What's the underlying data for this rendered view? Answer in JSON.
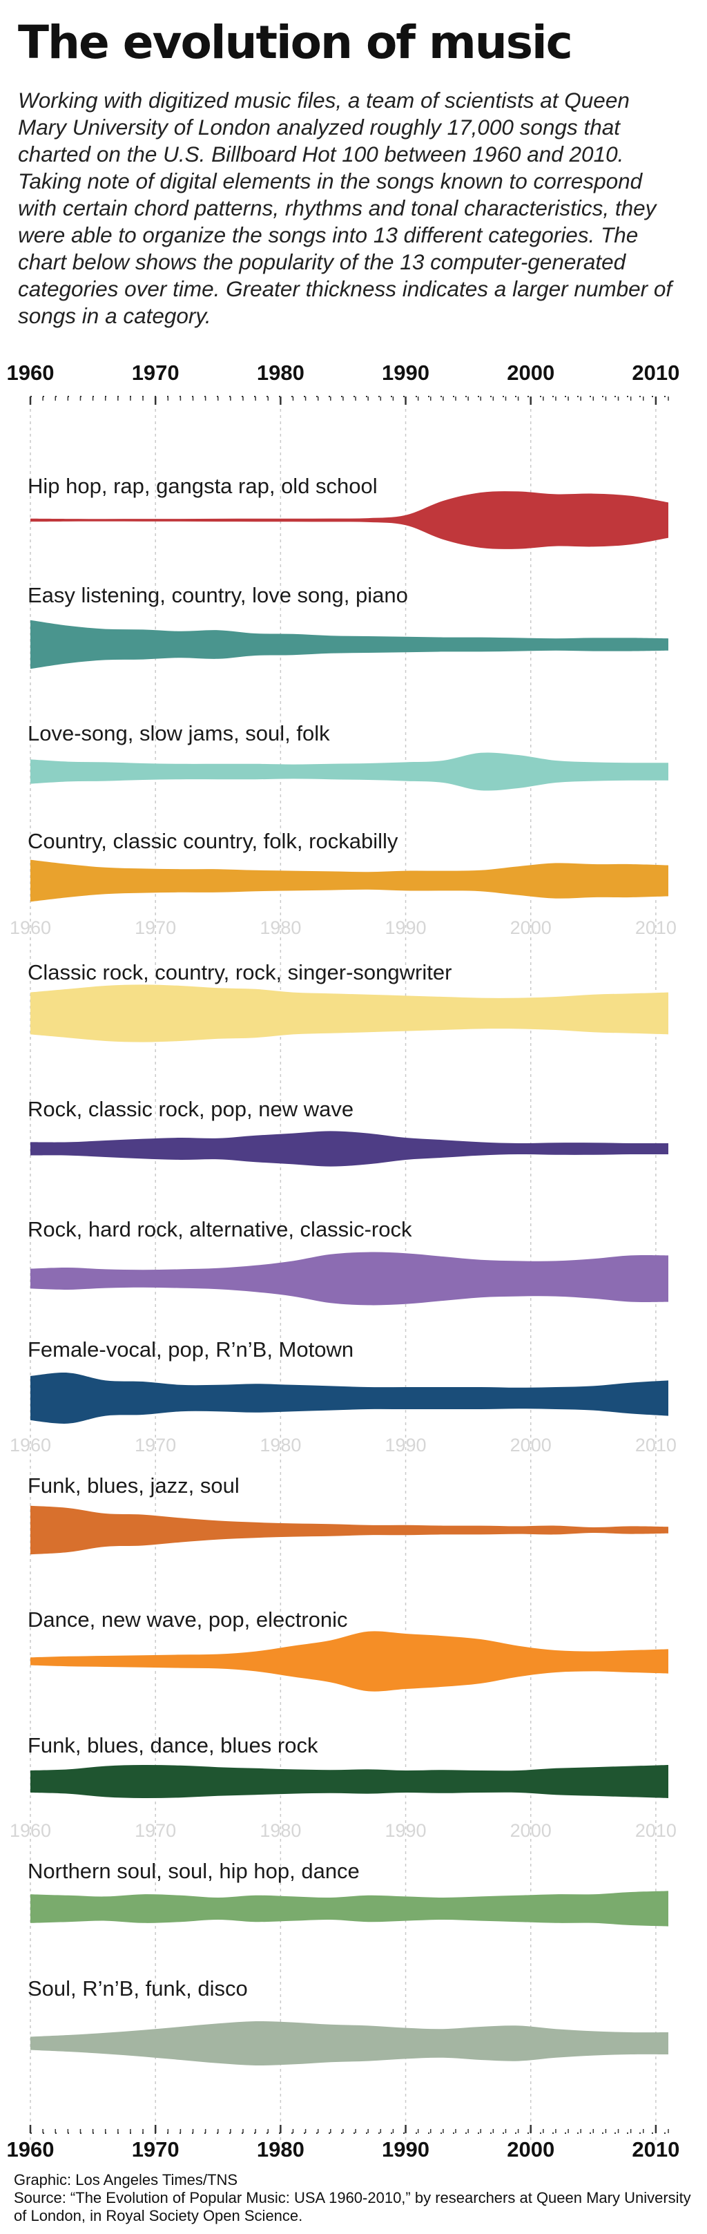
{
  "title": "The evolution of music",
  "intro": "Working with digitized music files, a team of scientists at Queen Mary University of London analyzed roughly 17,000 songs that charted on the U.S. Billboard Hot 100 between 1960 and 2010. Taking note of digital elements in the songs known to correspond with certain chord patterns, rhythms and tonal characteristics, they were able to organize the songs into 13 different categories. The chart below shows the popularity of the 13 computer-generated categories over time. Greater thickness indicates a larger number of songs in a category.",
  "credits": {
    "graphic": "Graphic: Los Angeles Times/TNS",
    "source": "Source: “The Evolution of Popular Music: USA 1960-2010,” by researchers at Queen Mary University of London, in Royal Society Open Science."
  },
  "chart_data": {
    "type": "area",
    "subtype": "streamgraph (thickness = relative number of songs)",
    "x_ticks": [
      "1960",
      "1970",
      "1980",
      "1990",
      "2000",
      "2010"
    ],
    "xlim": [
      1960,
      2011
    ],
    "grid": true,
    "x": [
      1960,
      1963,
      1966,
      1969,
      1972,
      1975,
      1978,
      1981,
      1984,
      1987,
      1990,
      1993,
      1996,
      1999,
      2002,
      2005,
      2008,
      2011
    ],
    "series": [
      {
        "name": "Hip hop, rap, gangsta rap, old school",
        "color": "#c0373b",
        "values": [
          0.14,
          0.12,
          0.11,
          0.12,
          0.12,
          0.13,
          0.14,
          0.14,
          0.15,
          0.18,
          0.45,
          1.75,
          2.5,
          2.6,
          2.35,
          2.4,
          2.2,
          1.6
        ]
      },
      {
        "name": "Easy listening, country, love song, piano",
        "color": "#4a958e",
        "values": [
          2.2,
          1.7,
          1.4,
          1.35,
          1.2,
          1.3,
          1.0,
          0.95,
          0.8,
          0.75,
          0.7,
          0.65,
          0.65,
          0.6,
          0.55,
          0.6,
          0.6,
          0.55
        ]
      },
      {
        "name": "Love-song, slow jams, soul, folk",
        "color": "#8dd0c4",
        "values": [
          1.1,
          0.9,
          0.85,
          0.75,
          0.7,
          0.7,
          0.7,
          0.65,
          0.7,
          0.75,
          0.85,
          1.0,
          1.7,
          1.5,
          1.0,
          0.85,
          0.8,
          0.8
        ]
      },
      {
        "name": "Country, classic country, folk, rockabilly",
        "color": "#e9a22d",
        "values": [
          1.9,
          1.5,
          1.2,
          1.1,
          1.05,
          1.05,
          0.95,
          0.9,
          0.85,
          0.8,
          0.9,
          0.9,
          0.95,
          1.3,
          1.6,
          1.5,
          1.5,
          1.4
        ]
      },
      {
        "name": "Classic rock, country, rock, singer-songwriter",
        "color": "#f6df88",
        "values": [
          1.9,
          2.2,
          2.5,
          2.6,
          2.5,
          2.3,
          2.2,
          1.9,
          1.8,
          1.7,
          1.6,
          1.5,
          1.4,
          1.4,
          1.5,
          1.7,
          1.8,
          1.9
        ]
      },
      {
        "name": "Rock, classic rock, pop, new wave",
        "color": "#4e3d85",
        "values": [
          0.6,
          0.6,
          0.75,
          0.9,
          1.0,
          0.95,
          1.2,
          1.4,
          1.6,
          1.4,
          1.0,
          0.8,
          0.6,
          0.5,
          0.55,
          0.55,
          0.5,
          0.5
        ]
      },
      {
        "name": "Rock, hard rock, alternative, classic-rock",
        "color": "#8c6cb2",
        "values": [
          0.9,
          1.0,
          0.85,
          0.8,
          0.85,
          0.95,
          1.2,
          1.6,
          2.2,
          2.4,
          2.3,
          2.0,
          1.7,
          1.6,
          1.6,
          1.8,
          2.1,
          2.1
        ]
      },
      {
        "name": "Female-vocal, pop, R’n’B, Motown",
        "color": "#1a4d79",
        "values": [
          2.0,
          2.3,
          1.6,
          1.5,
          1.2,
          1.2,
          1.3,
          1.2,
          1.1,
          1.0,
          1.0,
          1.0,
          1.0,
          0.95,
          1.0,
          1.1,
          1.4,
          1.6
        ]
      },
      {
        "name": "Funk, blues, jazz, soul",
        "color": "#d8702d",
        "values": [
          2.2,
          2.0,
          1.5,
          1.4,
          1.1,
          0.85,
          0.7,
          0.6,
          0.55,
          0.45,
          0.45,
          0.4,
          0.4,
          0.35,
          0.4,
          0.25,
          0.35,
          0.3
        ]
      },
      {
        "name": "Dance, new wave, pop, electronic",
        "color": "#f58e26",
        "values": [
          0.35,
          0.45,
          0.5,
          0.55,
          0.6,
          0.65,
          0.9,
          1.4,
          1.9,
          2.7,
          2.5,
          2.3,
          2.0,
          1.4,
          1.0,
          0.9,
          1.0,
          1.1
        ]
      },
      {
        "name": "Funk, blues, dance, blues rock",
        "color": "#1f5530",
        "values": [
          1.0,
          1.1,
          1.4,
          1.5,
          1.45,
          1.3,
          1.2,
          1.1,
          1.05,
          1.1,
          1.0,
          1.05,
          1.0,
          1.0,
          1.2,
          1.3,
          1.4,
          1.5
        ]
      },
      {
        "name": "Northern soul, soul, hip hop, dance",
        "color": "#7aab6d",
        "values": [
          1.3,
          1.2,
          1.1,
          1.3,
          1.2,
          1.0,
          1.2,
          1.1,
          1.0,
          1.2,
          1.1,
          1.0,
          1.1,
          1.2,
          1.3,
          1.3,
          1.5,
          1.6
        ]
      },
      {
        "name": "Soul, R’n’B, funk, disco",
        "color": "#a4b5a2",
        "values": [
          0.6,
          0.75,
          0.95,
          1.2,
          1.5,
          1.8,
          2.0,
          1.9,
          1.7,
          1.6,
          1.4,
          1.3,
          1.5,
          1.6,
          1.3,
          1.1,
          1.0,
          1.0
        ]
      }
    ]
  }
}
